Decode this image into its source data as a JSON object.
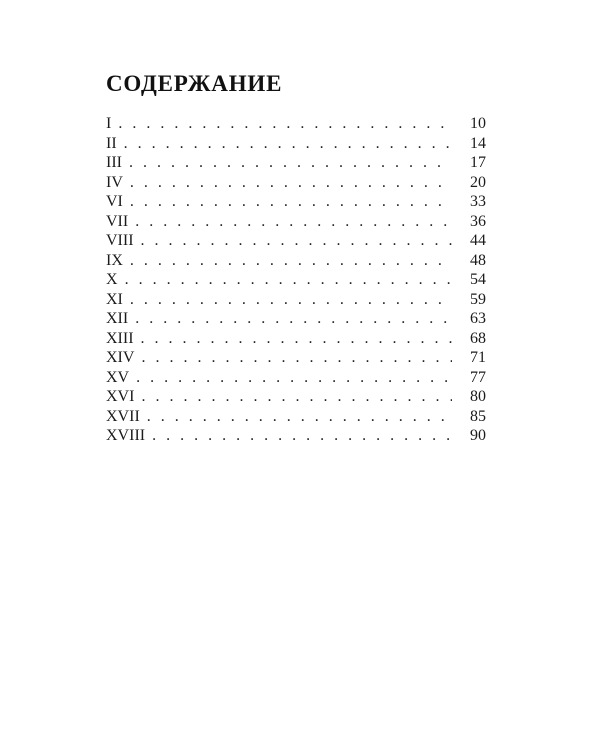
{
  "toc": {
    "title": "СОДЕРЖАНИЕ",
    "entries": [
      {
        "label": "I",
        "page": "10"
      },
      {
        "label": "II",
        "page": "14"
      },
      {
        "label": "III",
        "page": "17"
      },
      {
        "label": "IV",
        "page": "20"
      },
      {
        "label": "VI",
        "page": "33"
      },
      {
        "label": "VII",
        "page": "36"
      },
      {
        "label": "VIII",
        "page": "44"
      },
      {
        "label": "IX",
        "page": "48"
      },
      {
        "label": "X",
        "page": "54"
      },
      {
        "label": "XI",
        "page": "59"
      },
      {
        "label": "XII",
        "page": "63"
      },
      {
        "label": "XIII",
        "page": "68"
      },
      {
        "label": "XIV",
        "page": "71"
      },
      {
        "label": "XV",
        "page": "77"
      },
      {
        "label": "XVI",
        "page": "80"
      },
      {
        "label": "XVII",
        "page": "85"
      },
      {
        "label": "XVIII",
        "page": "90"
      }
    ]
  },
  "colors": {
    "background": "#ffffff",
    "text": "#1b1b1b"
  }
}
